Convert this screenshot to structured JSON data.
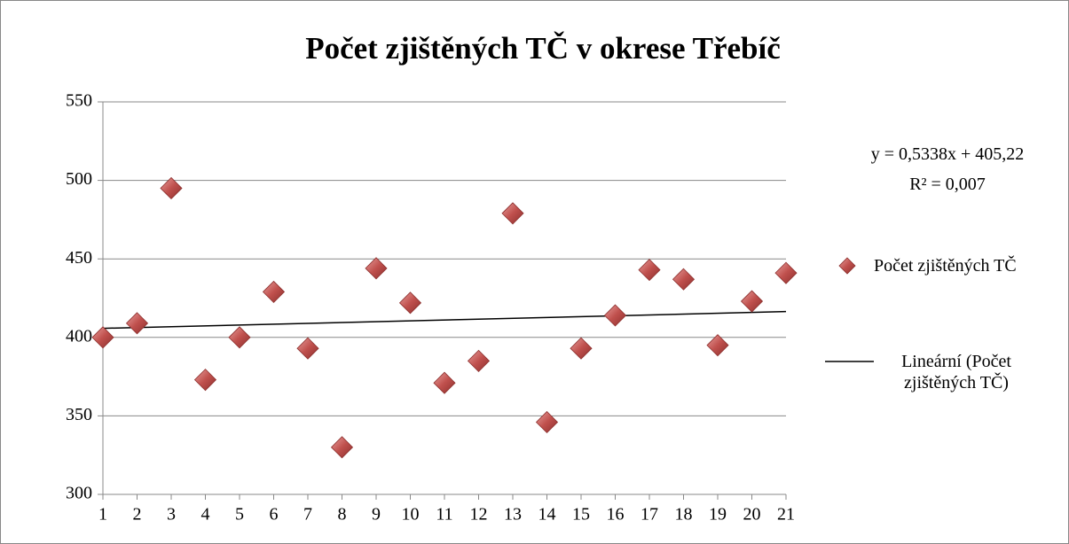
{
  "chart_data": {
    "type": "scatter",
    "title": "Počet zjištěných TČ v okrese Třebíč",
    "x": [
      1,
      2,
      3,
      4,
      5,
      6,
      7,
      8,
      9,
      10,
      11,
      12,
      13,
      14,
      15,
      16,
      17,
      18,
      19,
      20,
      21
    ],
    "series": [
      {
        "name": "Počet zjištěných TČ",
        "color": "#c0504d",
        "values": [
          400,
          409,
          495,
          373,
          400,
          429,
          393,
          330,
          444,
          422,
          371,
          385,
          479,
          346,
          393,
          414,
          443,
          437,
          395,
          423,
          441
        ]
      }
    ],
    "trendline": {
      "name": "Lineární (Počet zjištěných TČ)",
      "slope": 0.5338,
      "intercept": 405.22,
      "equation": "y = 0,5338x + 405,22",
      "r2": "R² = 0,007",
      "color": "#000000"
    },
    "xlim": [
      1,
      21
    ],
    "xticks": [
      1,
      2,
      3,
      4,
      5,
      6,
      7,
      8,
      9,
      10,
      11,
      12,
      13,
      14,
      15,
      16,
      17,
      18,
      19,
      20,
      21
    ],
    "ylim": [
      300,
      550
    ],
    "yticks": [
      300,
      350,
      400,
      450,
      500,
      550
    ],
    "grid": true,
    "legend": "right"
  }
}
